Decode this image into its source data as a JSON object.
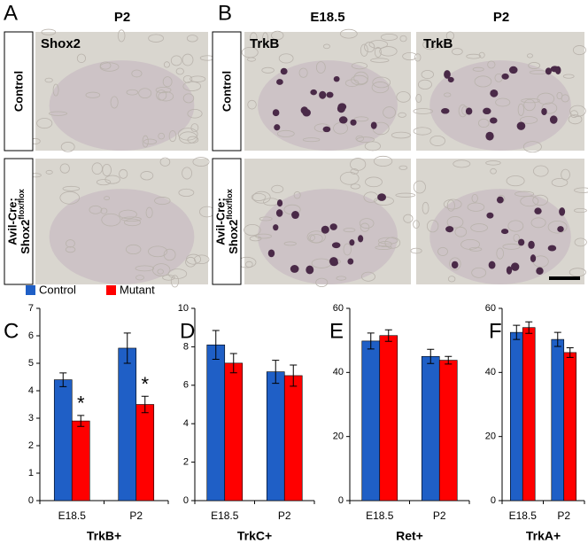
{
  "figure": {
    "panel_letters": [
      "A",
      "B"
    ],
    "column_headers": [
      "P2",
      "E18.5",
      "P2"
    ],
    "row_labels": {
      "control": "Control",
      "mutant_line1": "Avil-Cre;",
      "mutant_gene": "Shox2",
      "mutant_sup": "flox/flox"
    },
    "image_labels": [
      "Shox2",
      "TrkB",
      "TrkB"
    ]
  },
  "legend": [
    {
      "name": "Control",
      "color": "#1f5fc6"
    },
    {
      "name": "Mutant",
      "color": "#ff0000"
    }
  ],
  "chart_data": [
    {
      "type": "bar",
      "panel": "C",
      "xlabel": "TrkB+",
      "categories": [
        "E18.5",
        "P2"
      ],
      "series": [
        {
          "color": "#1f5fc6",
          "values": [
            4.4,
            5.55
          ],
          "errors": [
            0.25,
            0.55
          ]
        },
        {
          "color": "#ff0000",
          "values": [
            2.9,
            3.5
          ],
          "errors": [
            0.2,
            0.3
          ],
          "significance": [
            "*",
            "*"
          ]
        }
      ],
      "ylim": [
        0,
        7
      ],
      "yticks": [
        0,
        1,
        2,
        3,
        4,
        5,
        6,
        7
      ]
    },
    {
      "type": "bar",
      "panel": "D",
      "xlabel": "TrkC+",
      "categories": [
        "E18.5",
        "P2"
      ],
      "series": [
        {
          "color": "#1f5fc6",
          "values": [
            8.1,
            6.7
          ],
          "errors": [
            0.75,
            0.6
          ]
        },
        {
          "color": "#ff0000",
          "values": [
            7.15,
            6.5
          ],
          "errors": [
            0.5,
            0.55
          ]
        }
      ],
      "ylim": [
        0,
        10
      ],
      "yticks": [
        0,
        2,
        4,
        6,
        8,
        10
      ]
    },
    {
      "type": "bar",
      "panel": "E",
      "xlabel": "Ret+",
      "categories": [
        "E18.5",
        "P2"
      ],
      "series": [
        {
          "color": "#1f5fc6",
          "values": [
            49.8,
            45
          ],
          "errors": [
            2.5,
            2.2
          ]
        },
        {
          "color": "#ff0000",
          "values": [
            51.5,
            43.8
          ],
          "errors": [
            1.8,
            1.2
          ]
        }
      ],
      "ylim": [
        0,
        60
      ],
      "yticks": [
        0,
        20,
        40,
        60
      ]
    },
    {
      "type": "bar",
      "panel": "F",
      "xlabel": "TrkA+",
      "categories": [
        "E18.5",
        "P2"
      ],
      "series": [
        {
          "color": "#1f5fc6",
          "values": [
            52.5,
            50.3
          ],
          "errors": [
            2.2,
            2.2
          ]
        },
        {
          "color": "#ff0000",
          "values": [
            54,
            46.2
          ],
          "errors": [
            1.8,
            1.5
          ]
        }
      ],
      "ylim": [
        0,
        60
      ],
      "yticks": [
        0,
        20,
        40,
        60
      ]
    }
  ]
}
